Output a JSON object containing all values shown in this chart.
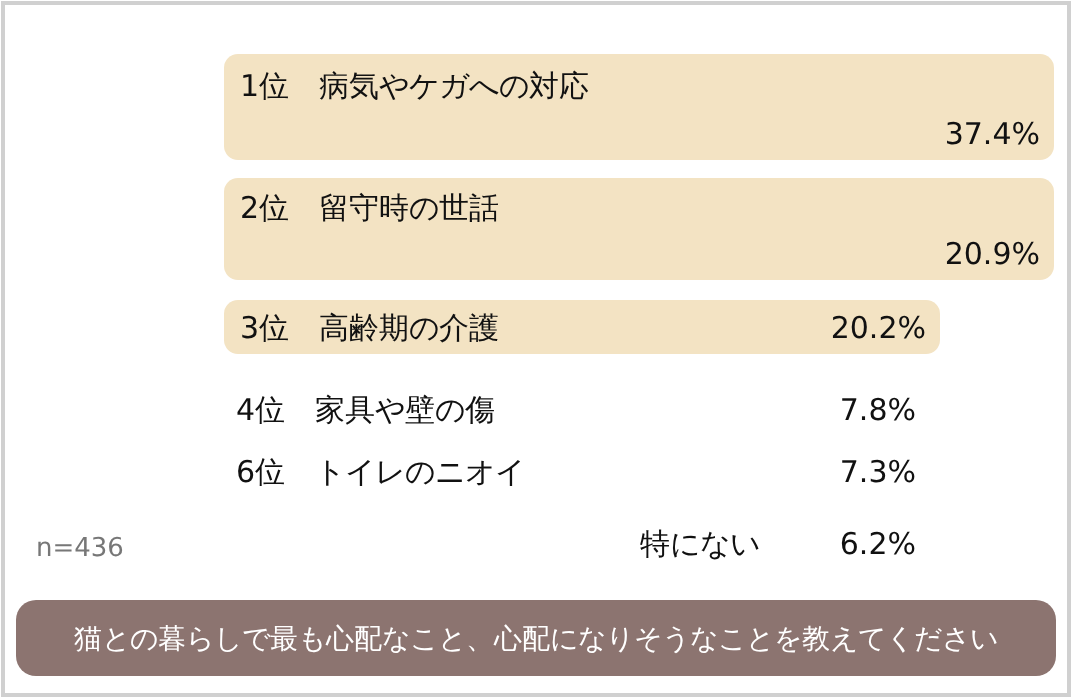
{
  "chart_data": {
    "type": "other",
    "title": "猫との暮らしで最も心配なこと、心配になりそうなことを教えてください",
    "categories": [
      "1位　病気やケガへの対応",
      "2位　留守時の世話",
      "3位　高齢期の介護",
      "4位　家具や壁の傷",
      "6位　トイレのニオイ",
      "特にない"
    ],
    "values": [
      37.4,
      20.9,
      20.2,
      7.8,
      7.3,
      6.2
    ],
    "value_labels": [
      "37.4%",
      "20.9%",
      "20.2%",
      "7.8%",
      "7.3%",
      "6.2%"
    ],
    "colors": [
      "#f3e3c3",
      "#f3e3c3",
      "#f3e3c3",
      null,
      null,
      null
    ],
    "annotations": [
      "n=436"
    ]
  }
}
